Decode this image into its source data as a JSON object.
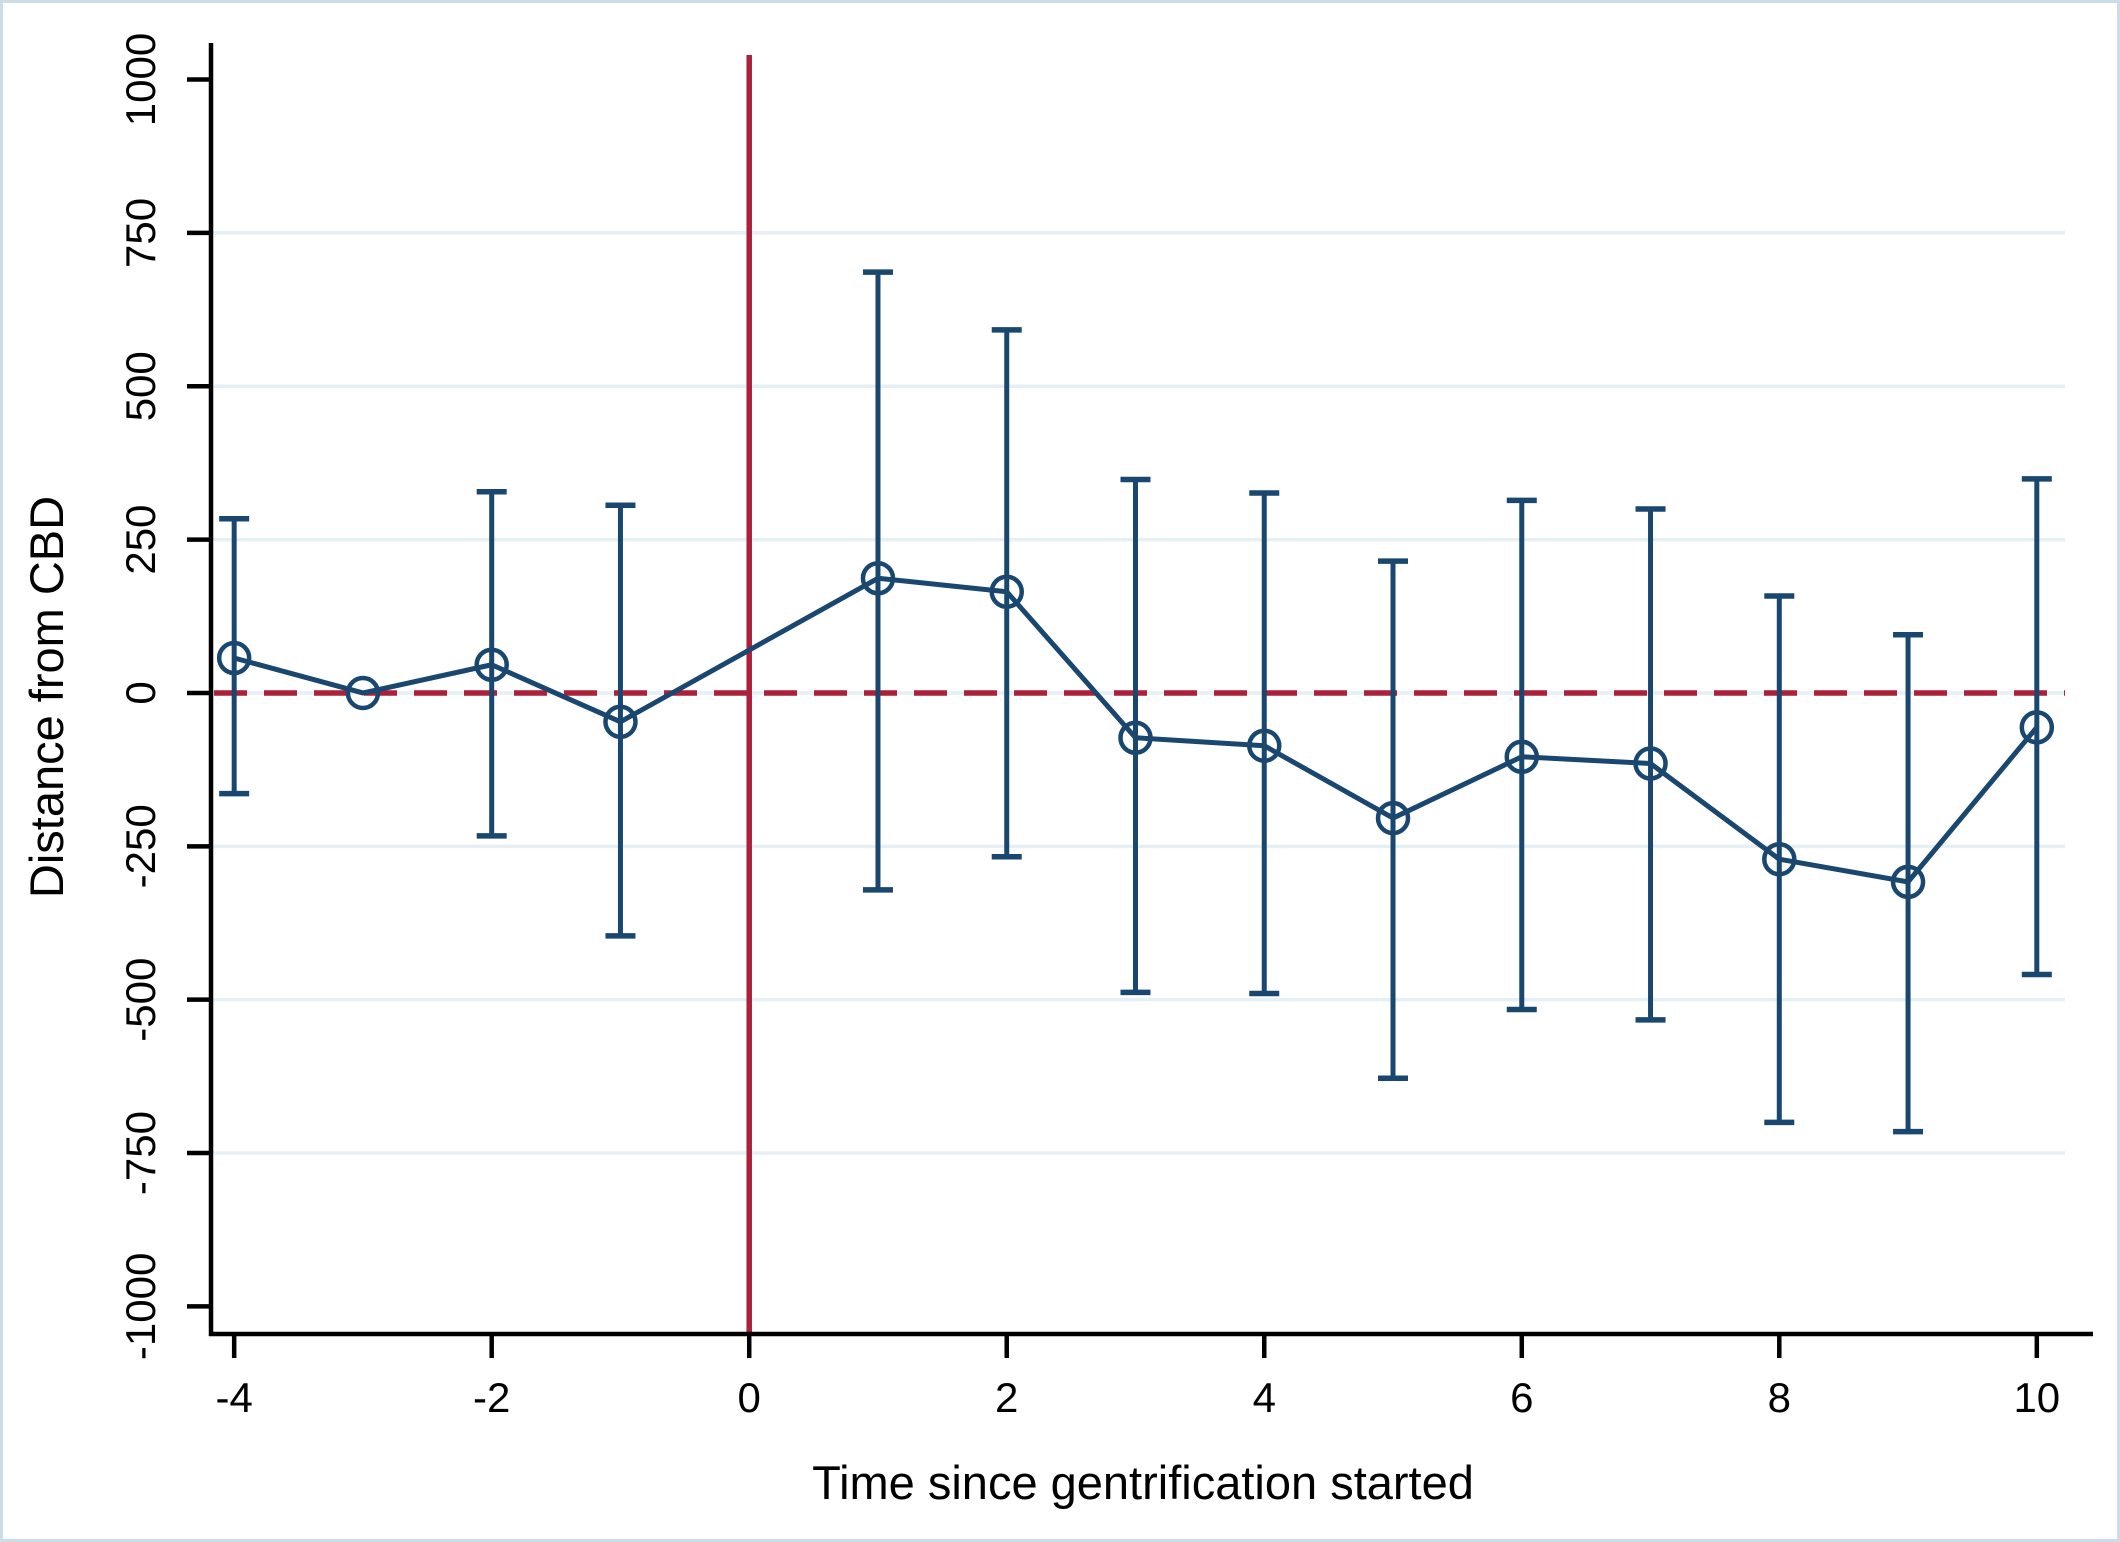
{
  "figure": {
    "background": "#ffffff",
    "border_color": "#ccdde9"
  },
  "chart_data": {
    "type": "line",
    "subtype": "event-study errorbar plot",
    "title": "",
    "xlabel": "Time since gentrification started",
    "ylabel": "Distance from CBD",
    "x": [
      -4,
      -3,
      -2,
      -1,
      1,
      2,
      3,
      4,
      5,
      6,
      7,
      8,
      9,
      10
    ],
    "series": [
      {
        "name": "point-estimate",
        "values": [
          57,
          0,
          46,
          -47,
          187,
          165,
          -73,
          -86,
          -204,
          -104,
          -115,
          -271,
          -308,
          -56
        ]
      },
      {
        "name": "ci-low",
        "values": [
          -164,
          null,
          -233,
          -396,
          -321,
          -267,
          -488,
          -490,
          -628,
          -516,
          -533,
          -700,
          -715,
          -459
        ]
      },
      {
        "name": "ci-high",
        "values": [
          284,
          null,
          328,
          306,
          686,
          592,
          348,
          326,
          215,
          314,
          300,
          158,
          95,
          349
        ]
      }
    ],
    "x_ticks": [
      -4,
      -2,
      0,
      2,
      4,
      6,
      8,
      10
    ],
    "y_ticks": [
      -1000,
      -750,
      -500,
      -250,
      0,
      250,
      500,
      750,
      1000
    ],
    "gridline_values": [
      -750,
      -500,
      -250,
      0,
      250,
      500,
      750
    ],
    "xlim": [
      -4.18,
      10.25
    ],
    "ylim": [
      -1045,
      1040
    ],
    "reference_lines": {
      "vertical_x": 0,
      "vertical_style": "solid",
      "horizontal_y": 0,
      "horizontal_style": "dashed"
    },
    "legend": "none",
    "grid": "horizontal-only",
    "colors": {
      "series": "#1a476f",
      "reference": "#ab2139",
      "grid": "#e6eff3",
      "axis": "#000000"
    }
  }
}
